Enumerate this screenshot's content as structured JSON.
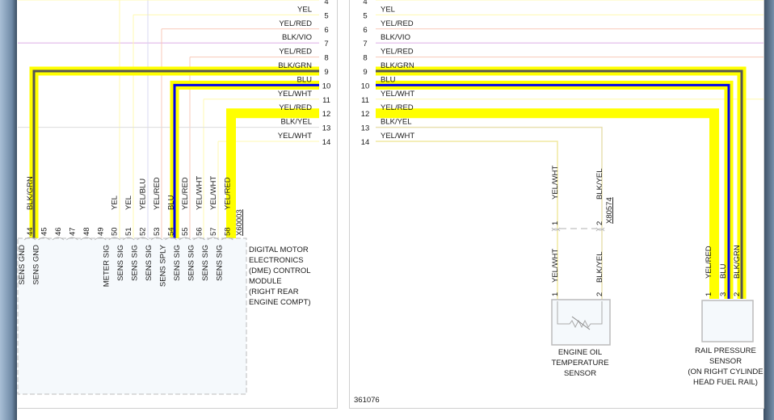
{
  "rows": {
    "pins": [
      "4",
      "5",
      "6",
      "7",
      "8",
      "9",
      "10",
      "11",
      "12",
      "13",
      "14"
    ],
    "labels": [
      "",
      "YEL",
      "YEL/RED",
      "BLK/VIO",
      "YEL/RED",
      "BLK/GRN",
      "BLU",
      "YEL/WHT",
      "YEL/RED",
      "BLK/YEL",
      "YEL/WHT"
    ]
  },
  "dme": {
    "pins": [
      "44",
      "45",
      "46",
      "47",
      "48",
      "49",
      "50",
      "51",
      "52",
      "53",
      "54",
      "55",
      "56",
      "57",
      "58"
    ],
    "wires": [
      "BLK/GRN",
      "",
      "",
      "",
      "",
      "",
      "YEL",
      "YEL",
      "YEL/BLU",
      "YEL/RED",
      "BLU",
      "YEL/RED",
      "YEL/WHT",
      "YEL/WHT",
      "YEL/RED"
    ],
    "functions": [
      "SENS GND",
      "SENS GND",
      "",
      "",
      "",
      "",
      "METER SIG",
      "SENS SIG",
      "SENS SIG",
      "SENS SIG",
      "SENS SPLY",
      "SENS SIG",
      "SENS SIG",
      "SENS SIG",
      "SENS SIG"
    ],
    "connector": "X60003",
    "name": [
      "DIGITAL MOTOR",
      "ELECTRONICS",
      "(DME) CONTROL",
      "MODULE",
      "(RIGHT REAR",
      "ENGINE COMPT)"
    ]
  },
  "oil_sensor": {
    "pins": [
      "1",
      "2"
    ],
    "wires": [
      "YEL/WHT",
      "BLK/YEL"
    ],
    "connector": "X80574",
    "name": [
      "ENGINE OIL",
      "TEMPERATURE",
      "SENSOR"
    ]
  },
  "rail_sensor": {
    "pins": [
      "1",
      "3",
      "2"
    ],
    "wires": [
      "YEL/RED",
      "BLU",
      "BLK/GRN"
    ],
    "name": [
      "RAIL PRESSURE",
      "SENSOR",
      "(ON RIGHT CYLINDE",
      "HEAD FUEL RAIL)"
    ]
  },
  "figure_id": "361076",
  "colors": {
    "highlight": "#ffff00",
    "blue": "#0000ee",
    "dark": "#555555",
    "violet": "#e8c8ee",
    "faint_yellow": "#fff8b0",
    "faint_red": "#f8c8b8"
  }
}
